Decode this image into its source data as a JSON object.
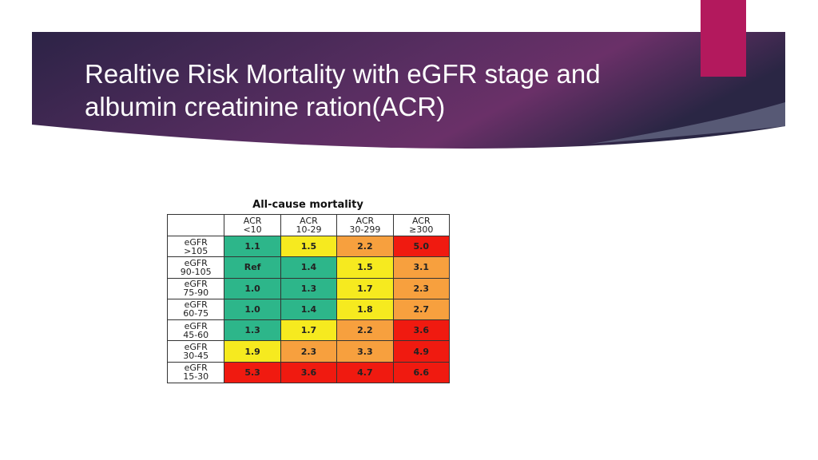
{
  "slide": {
    "title": "Realtive Risk Mortality with eGFR stage and albumin creatinine ration(ACR)"
  },
  "colors": {
    "banner": "#3a2450",
    "accent": "#b3195d",
    "green": "#2db68a",
    "yellow": "#f6ea1f",
    "orange": "#f7a03e",
    "red": "#f01a10"
  },
  "table": {
    "title": "All-cause mortality",
    "columns": [
      [
        "ACR",
        "<10"
      ],
      [
        "ACR",
        "10-29"
      ],
      [
        "ACR",
        "30-299"
      ],
      [
        "ACR",
        "≥300"
      ]
    ],
    "rows": [
      {
        "label": [
          "eGFR",
          ">105"
        ],
        "values": [
          "1.1",
          "1.5",
          "2.2",
          "5.0"
        ],
        "colors": [
          "green",
          "yellow",
          "orange",
          "red"
        ]
      },
      {
        "label": [
          "eGFR",
          "90-105"
        ],
        "values": [
          "Ref",
          "1.4",
          "1.5",
          "3.1"
        ],
        "colors": [
          "green",
          "green",
          "yellow",
          "orange"
        ]
      },
      {
        "label": [
          "eGFR",
          "75-90"
        ],
        "values": [
          "1.0",
          "1.3",
          "1.7",
          "2.3"
        ],
        "colors": [
          "green",
          "green",
          "yellow",
          "orange"
        ]
      },
      {
        "label": [
          "eGFR",
          "60-75"
        ],
        "values": [
          "1.0",
          "1.4",
          "1.8",
          "2.7"
        ],
        "colors": [
          "green",
          "green",
          "yellow",
          "orange"
        ]
      },
      {
        "label": [
          "eGFR",
          "45-60"
        ],
        "values": [
          "1.3",
          "1.7",
          "2.2",
          "3.6"
        ],
        "colors": [
          "green",
          "yellow",
          "orange",
          "red"
        ]
      },
      {
        "label": [
          "eGFR",
          "30-45"
        ],
        "values": [
          "1.9",
          "2.3",
          "3.3",
          "4.9"
        ],
        "colors": [
          "yellow",
          "orange",
          "orange",
          "red"
        ]
      },
      {
        "label": [
          "eGFR",
          "15-30"
        ],
        "values": [
          "5.3",
          "3.6",
          "4.7",
          "6.6"
        ],
        "colors": [
          "red",
          "red",
          "red",
          "red"
        ]
      }
    ]
  }
}
